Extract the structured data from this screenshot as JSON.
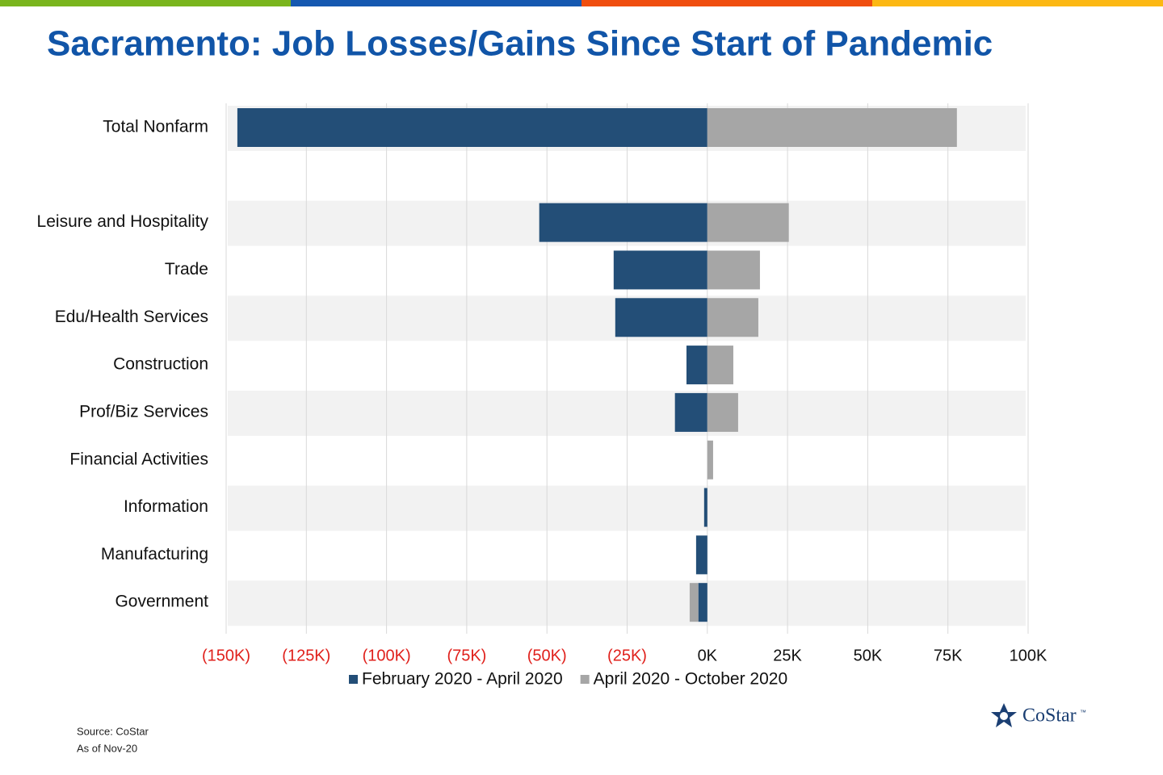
{
  "chart_data": {
    "type": "bar",
    "orientation": "horizontal",
    "stacked": true,
    "title": "Sacramento: Job Losses/Gains Since Start of Pandemic",
    "categories": [
      "Total Nonfarm",
      null,
      "Leisure and Hospitality",
      "Trade",
      "Edu/Health Services",
      "Construction",
      "Prof/Biz Services",
      "Financial Activities",
      "Information",
      "Manufacturing",
      "Government"
    ],
    "series": [
      {
        "name": "February 2020 - April 2020",
        "color": "#234e77",
        "values": [
          -146500,
          null,
          -52400,
          -29200,
          -28700,
          -6500,
          -10100,
          0,
          -1000,
          -3500,
          -2800
        ]
      },
      {
        "name": "April 2020 - October 2020",
        "color": "#a6a6a6",
        "values": [
          77800,
          null,
          25400,
          16400,
          15900,
          8100,
          9600,
          1800,
          0,
          0,
          -2700
        ]
      }
    ],
    "xlim": [
      -150000,
      100000
    ],
    "xticks": [
      {
        "value": -150000,
        "label": "(150K)"
      },
      {
        "value": -125000,
        "label": "(125K)"
      },
      {
        "value": -100000,
        "label": "(100K)"
      },
      {
        "value": -75000,
        "label": "(75K)"
      },
      {
        "value": -50000,
        "label": "(50K)"
      },
      {
        "value": -25000,
        "label": "(25K)"
      },
      {
        "value": 0,
        "label": "0K"
      },
      {
        "value": 25000,
        "label": "25K"
      },
      {
        "value": 50000,
        "label": "50K"
      },
      {
        "value": 75000,
        "label": "75K"
      },
      {
        "value": 100000,
        "label": "100K"
      }
    ],
    "negative_tick_color": "#e0201b",
    "grid": true,
    "legend": "bottom",
    "source": "Source: CoStar",
    "as_of": "As of Nov-20",
    "logo": "CoStar",
    "logo_mark": "™"
  }
}
